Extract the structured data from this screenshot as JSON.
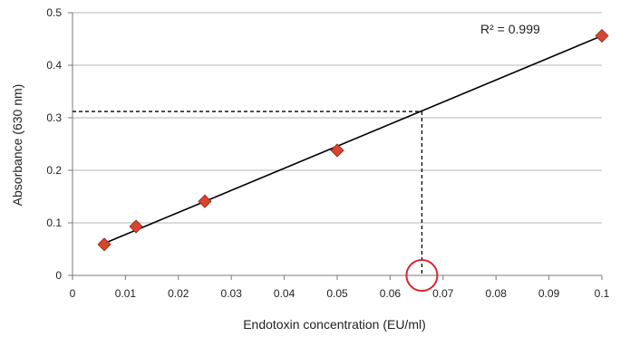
{
  "chart_data": {
    "type": "scatter",
    "xlabel": "Endotoxin concentration (EU/ml)",
    "ylabel": "Absorbance (630 nm)",
    "xlim": [
      0,
      0.1
    ],
    "ylim": [
      0,
      0.5
    ],
    "x_ticks": [
      "0",
      "0.01",
      "0.02",
      "0.03",
      "0.04",
      "0.05",
      "0.06",
      "0.07",
      "0.08",
      "0.09",
      "0.1"
    ],
    "y_ticks": [
      "0",
      "0.1",
      "0.2",
      "0.3",
      "0.4",
      "0.5"
    ],
    "grid": "horizontal",
    "series": [
      {
        "x": [
          0.006,
          0.012,
          0.025,
          0.05,
          0.1
        ],
        "y": [
          0.059,
          0.093,
          0.141,
          0.238,
          0.456
        ],
        "marker": "diamond",
        "color": "#d9442e"
      }
    ],
    "trendline": {
      "type": "linear",
      "x": [
        0.006,
        0.1
      ],
      "y": [
        0.061,
        0.456
      ],
      "color": "#000000"
    },
    "annotation": {
      "r2_text": "R² = 0.999"
    },
    "reference_lines": {
      "x": 0.066,
      "y": 0.312,
      "style": "dashed"
    },
    "highlight_circle": {
      "x": 0.066,
      "y": 0,
      "color": "#d9242b"
    }
  }
}
